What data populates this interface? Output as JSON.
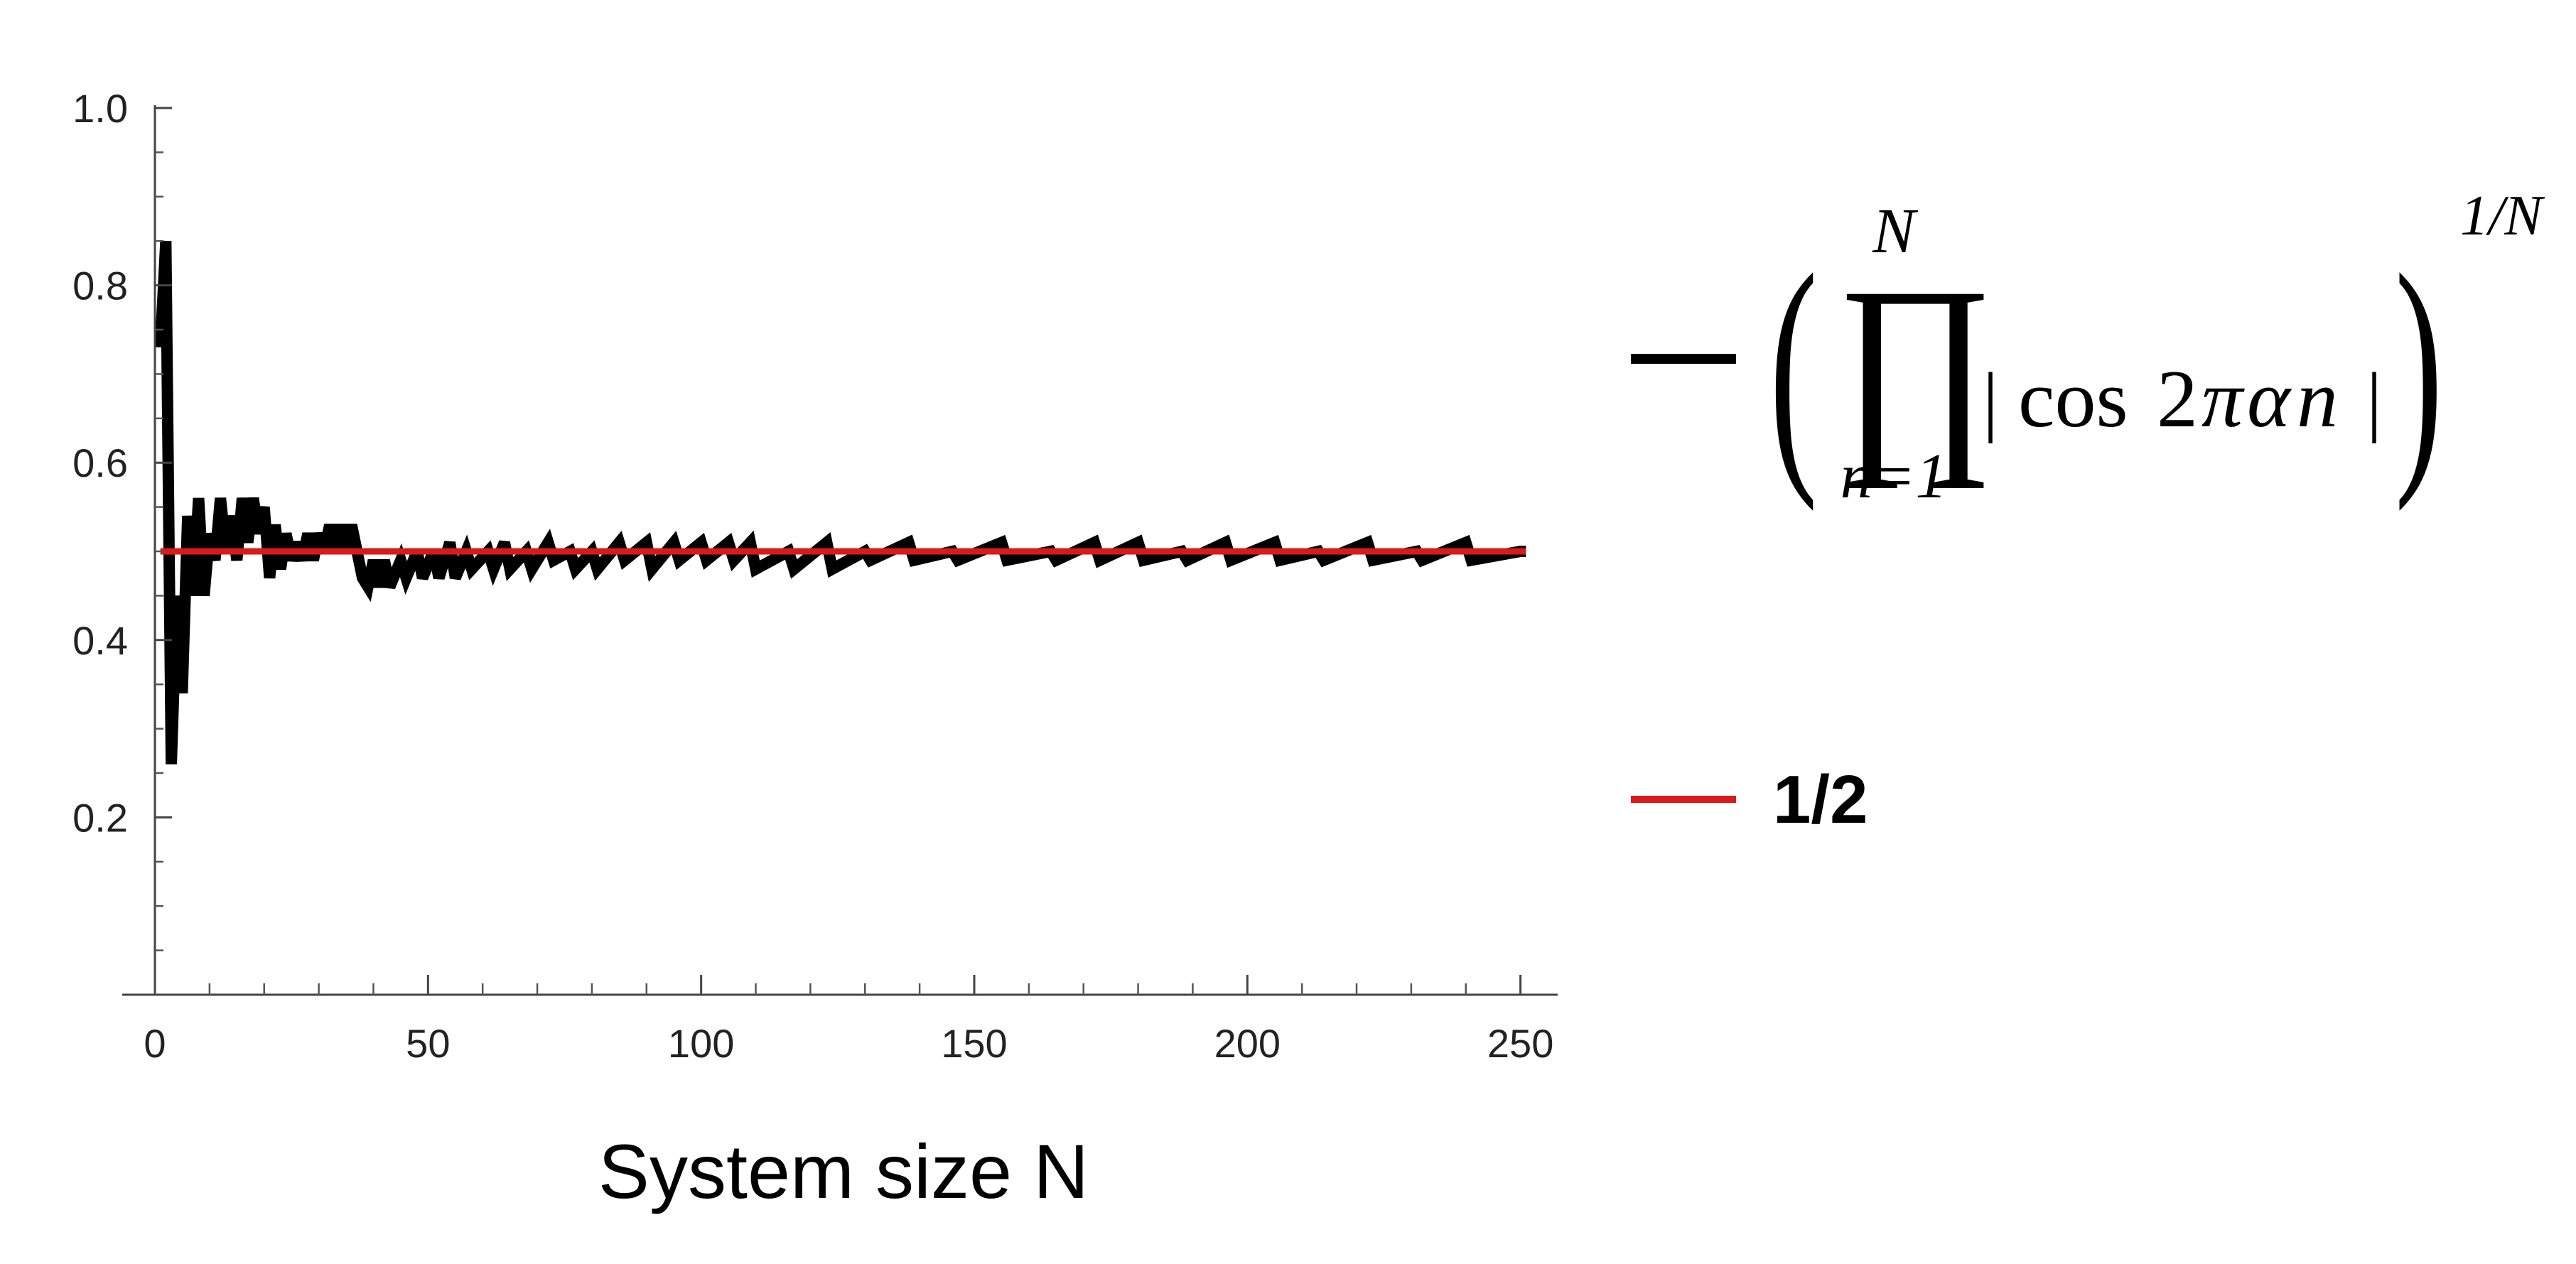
{
  "chart_data": {
    "type": "line",
    "xlabel": "System size N",
    "ylabel": "",
    "xlim": [
      0,
      252
    ],
    "ylim": [
      0,
      1.0
    ],
    "x_ticks": [
      0,
      50,
      100,
      150,
      200,
      250
    ],
    "x_tick_labels": [
      "0",
      "50",
      "100",
      "150",
      "200",
      "250"
    ],
    "y_ticks": [
      0.2,
      0.4,
      0.6,
      0.8,
      1.0
    ],
    "y_tick_labels": [
      "0.2",
      "0.4",
      "0.6",
      "0.8",
      "1.0"
    ],
    "legend_placement": "right",
    "series": [
      {
        "color": "#000000",
        "legend": {
          "open_paren": "(",
          "product": "∏",
          "upper_limit": "N",
          "lower_limit": "n=1",
          "bar_left": "|",
          "cos": "cos",
          "arg_2": "2",
          "arg_pi": "π",
          "arg_alpha": "α",
          "arg_n": "n",
          "bar_right": "|",
          "close_paren": ")",
          "exponent": "1/N"
        },
        "points": [
          [
            1,
            0.73
          ],
          [
            2,
            0.85
          ],
          [
            3,
            0.26
          ],
          [
            4,
            0.45
          ],
          [
            5,
            0.34
          ],
          [
            6,
            0.54
          ],
          [
            7,
            0.45
          ],
          [
            8,
            0.56
          ],
          [
            9,
            0.45
          ],
          [
            10,
            0.52
          ],
          [
            11,
            0.49
          ],
          [
            12,
            0.56
          ],
          [
            13,
            0.5
          ],
          [
            14,
            0.54
          ],
          [
            15,
            0.49
          ],
          [
            16,
            0.56
          ],
          [
            17,
            0.51
          ],
          [
            18,
            0.56
          ],
          [
            19,
            0.52
          ],
          [
            20,
            0.55
          ],
          [
            21,
            0.47
          ],
          [
            22,
            0.53
          ],
          [
            23,
            0.48
          ],
          [
            24,
            0.52
          ],
          [
            25,
            0.49
          ],
          [
            26,
            0.51
          ],
          [
            27,
            0.49
          ],
          [
            28,
            0.52
          ],
          [
            29,
            0.49
          ],
          [
            30,
            0.52
          ],
          [
            31,
            0.5
          ],
          [
            32,
            0.53
          ],
          [
            33,
            0.5
          ],
          [
            34,
            0.53
          ],
          [
            35,
            0.5
          ],
          [
            36,
            0.53
          ],
          [
            37,
            0.5
          ],
          [
            38,
            0.47
          ],
          [
            39,
            0.46
          ],
          [
            40,
            0.49
          ],
          [
            41,
            0.46
          ],
          [
            42,
            0.49
          ],
          [
            43,
            0.46
          ],
          [
            45,
            0.49
          ],
          [
            46,
            0.47
          ],
          [
            48,
            0.5
          ],
          [
            49,
            0.47
          ],
          [
            51,
            0.5
          ],
          [
            52,
            0.47
          ],
          [
            54,
            0.51
          ],
          [
            55,
            0.47
          ],
          [
            57,
            0.5
          ],
          [
            58,
            0.48
          ],
          [
            61,
            0.5
          ],
          [
            62,
            0.48
          ],
          [
            64,
            0.51
          ],
          [
            65,
            0.48
          ],
          [
            68,
            0.5
          ],
          [
            69,
            0.48
          ],
          [
            72,
            0.51
          ],
          [
            73,
            0.49
          ],
          [
            76,
            0.5
          ],
          [
            77,
            0.48
          ],
          [
            80,
            0.5
          ],
          [
            81,
            0.48
          ],
          [
            85,
            0.51
          ],
          [
            86,
            0.49
          ],
          [
            90,
            0.51
          ],
          [
            91,
            0.48
          ],
          [
            95,
            0.51
          ],
          [
            96,
            0.49
          ],
          [
            100,
            0.51
          ],
          [
            101,
            0.49
          ],
          [
            105,
            0.51
          ],
          [
            106,
            0.49
          ],
          [
            109,
            0.51
          ],
          [
            110,
            0.48
          ],
          [
            116,
            0.5
          ],
          [
            117,
            0.48
          ],
          [
            123,
            0.51
          ],
          [
            124,
            0.48
          ],
          [
            130,
            0.5
          ],
          [
            131,
            0.49
          ],
          [
            138,
            0.51
          ],
          [
            139,
            0.49
          ],
          [
            146,
            0.5
          ],
          [
            147,
            0.49
          ],
          [
            155,
            0.51
          ],
          [
            156,
            0.49
          ],
          [
            164,
            0.5
          ],
          [
            165,
            0.49
          ],
          [
            172,
            0.51
          ],
          [
            173,
            0.49
          ],
          [
            180,
            0.51
          ],
          [
            181,
            0.49
          ],
          [
            188,
            0.5
          ],
          [
            189,
            0.49
          ],
          [
            196,
            0.51
          ],
          [
            197,
            0.49
          ],
          [
            205,
            0.51
          ],
          [
            206,
            0.49
          ],
          [
            213,
            0.5
          ],
          [
            214,
            0.49
          ],
          [
            222,
            0.51
          ],
          [
            223,
            0.49
          ],
          [
            231,
            0.5
          ],
          [
            232,
            0.49
          ],
          [
            240,
            0.51
          ],
          [
            241,
            0.49
          ],
          [
            250,
            0.5
          ],
          [
            251,
            0.5
          ]
        ]
      },
      {
        "name": "1/2",
        "color": "#d91a1a",
        "points": [
          [
            1,
            0.5
          ],
          [
            251,
            0.5
          ]
        ]
      }
    ]
  }
}
